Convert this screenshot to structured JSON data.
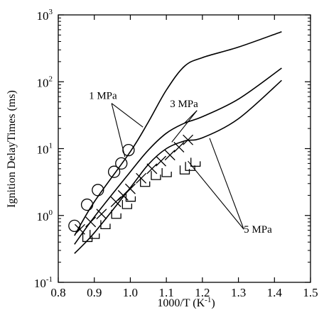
{
  "chart_data": {
    "type": "scatter",
    "xlabel": "1000/T (K",
    "xlabel_exp": "-1",
    "xlabel_close": ")",
    "ylabel": "Ignition DelayTimes (ms)",
    "xlim": [
      0.8,
      1.5
    ],
    "ylim": [
      0.1,
      1000
    ],
    "y_scale": "log",
    "grid": false,
    "x_ticks": [
      {
        "value": 0.8,
        "label": "0.8"
      },
      {
        "value": 0.9,
        "label": "0.9"
      },
      {
        "value": 1.0,
        "label": "1.0"
      },
      {
        "value": 1.1,
        "label": "1.1"
      },
      {
        "value": 1.2,
        "label": "1.2"
      },
      {
        "value": 1.3,
        "label": "1.3"
      },
      {
        "value": 1.4,
        "label": "1.4"
      },
      {
        "value": 1.5,
        "label": "1.5"
      }
    ],
    "y_ticks": [
      {
        "value": 0.1,
        "base": "10",
        "exp": "-1"
      },
      {
        "value": 1,
        "base": "10",
        "exp": "0"
      },
      {
        "value": 10,
        "base": "10",
        "exp": "1"
      },
      {
        "value": 100,
        "base": "10",
        "exp": "2"
      },
      {
        "value": 1000,
        "base": "10",
        "exp": "3"
      }
    ],
    "series": [
      {
        "pressure": "1 MPa",
        "marker": "circle",
        "points": [
          [
            0.845,
            0.7
          ],
          [
            0.88,
            1.45
          ],
          [
            0.91,
            2.4
          ],
          [
            0.955,
            4.5
          ],
          [
            0.975,
            6.0
          ],
          [
            0.995,
            9.5
          ]
        ],
        "curve": [
          [
            0.845,
            0.5
          ],
          [
            0.9,
            1.6
          ],
          [
            1.0,
            9.0
          ],
          [
            1.05,
            25
          ],
          [
            1.1,
            75
          ],
          [
            1.15,
            170
          ],
          [
            1.2,
            230
          ],
          [
            1.3,
            330
          ],
          [
            1.42,
            560
          ]
        ]
      },
      {
        "pressure": "3 MPa",
        "marker": "cross",
        "points": [
          [
            0.86,
            0.62
          ],
          [
            0.89,
            0.8
          ],
          [
            0.92,
            1.05
          ],
          [
            0.96,
            1.6
          ],
          [
            0.98,
            2.0
          ],
          [
            1.0,
            2.5
          ],
          [
            1.03,
            3.6
          ],
          [
            1.06,
            5.0
          ],
          [
            1.085,
            6.5
          ],
          [
            1.11,
            8.0
          ],
          [
            1.135,
            10.5
          ],
          [
            1.16,
            13.5
          ]
        ],
        "curve": [
          [
            0.845,
            0.37
          ],
          [
            0.9,
            0.95
          ],
          [
            1.0,
            4.5
          ],
          [
            1.05,
            9.5
          ],
          [
            1.1,
            17
          ],
          [
            1.15,
            24
          ],
          [
            1.2,
            30
          ],
          [
            1.3,
            55
          ],
          [
            1.42,
            160
          ]
        ]
      },
      {
        "pressure": "5 MPa",
        "marker": "check",
        "points": [
          [
            0.88,
            0.45
          ],
          [
            0.9,
            0.5
          ],
          [
            0.93,
            0.7
          ],
          [
            0.96,
            1.0
          ],
          [
            0.99,
            1.4
          ],
          [
            1.0,
            1.8
          ],
          [
            1.04,
            3.0
          ],
          [
            1.07,
            3.8
          ],
          [
            1.1,
            4.2
          ],
          [
            1.15,
            4.6
          ],
          [
            1.165,
            5.2
          ],
          [
            1.18,
            6.0
          ]
        ],
        "curve": [
          [
            0.845,
            0.27
          ],
          [
            0.9,
            0.55
          ],
          [
            1.0,
            2.6
          ],
          [
            1.05,
            5.8
          ],
          [
            1.1,
            10
          ],
          [
            1.15,
            13
          ],
          [
            1.2,
            14.5
          ],
          [
            1.3,
            28
          ],
          [
            1.42,
            105
          ]
        ]
      }
    ],
    "annotations": [
      {
        "text": "1 MPa",
        "label_at": [
          0.885,
          55
        ],
        "targets": [
          [
            0.985,
            7.5
          ],
          [
            1.035,
            21
          ]
        ]
      },
      {
        "text": "3 MPa",
        "label_at": [
          1.11,
          42
        ],
        "targets": [
          [
            1.115,
            12.5
          ],
          [
            1.15,
            24
          ]
        ]
      },
      {
        "text": "5 MPa",
        "label_at": [
          1.315,
          0.55
        ],
        "targets": [
          [
            1.16,
            6.5
          ],
          [
            1.22,
            14.3
          ]
        ]
      }
    ]
  }
}
